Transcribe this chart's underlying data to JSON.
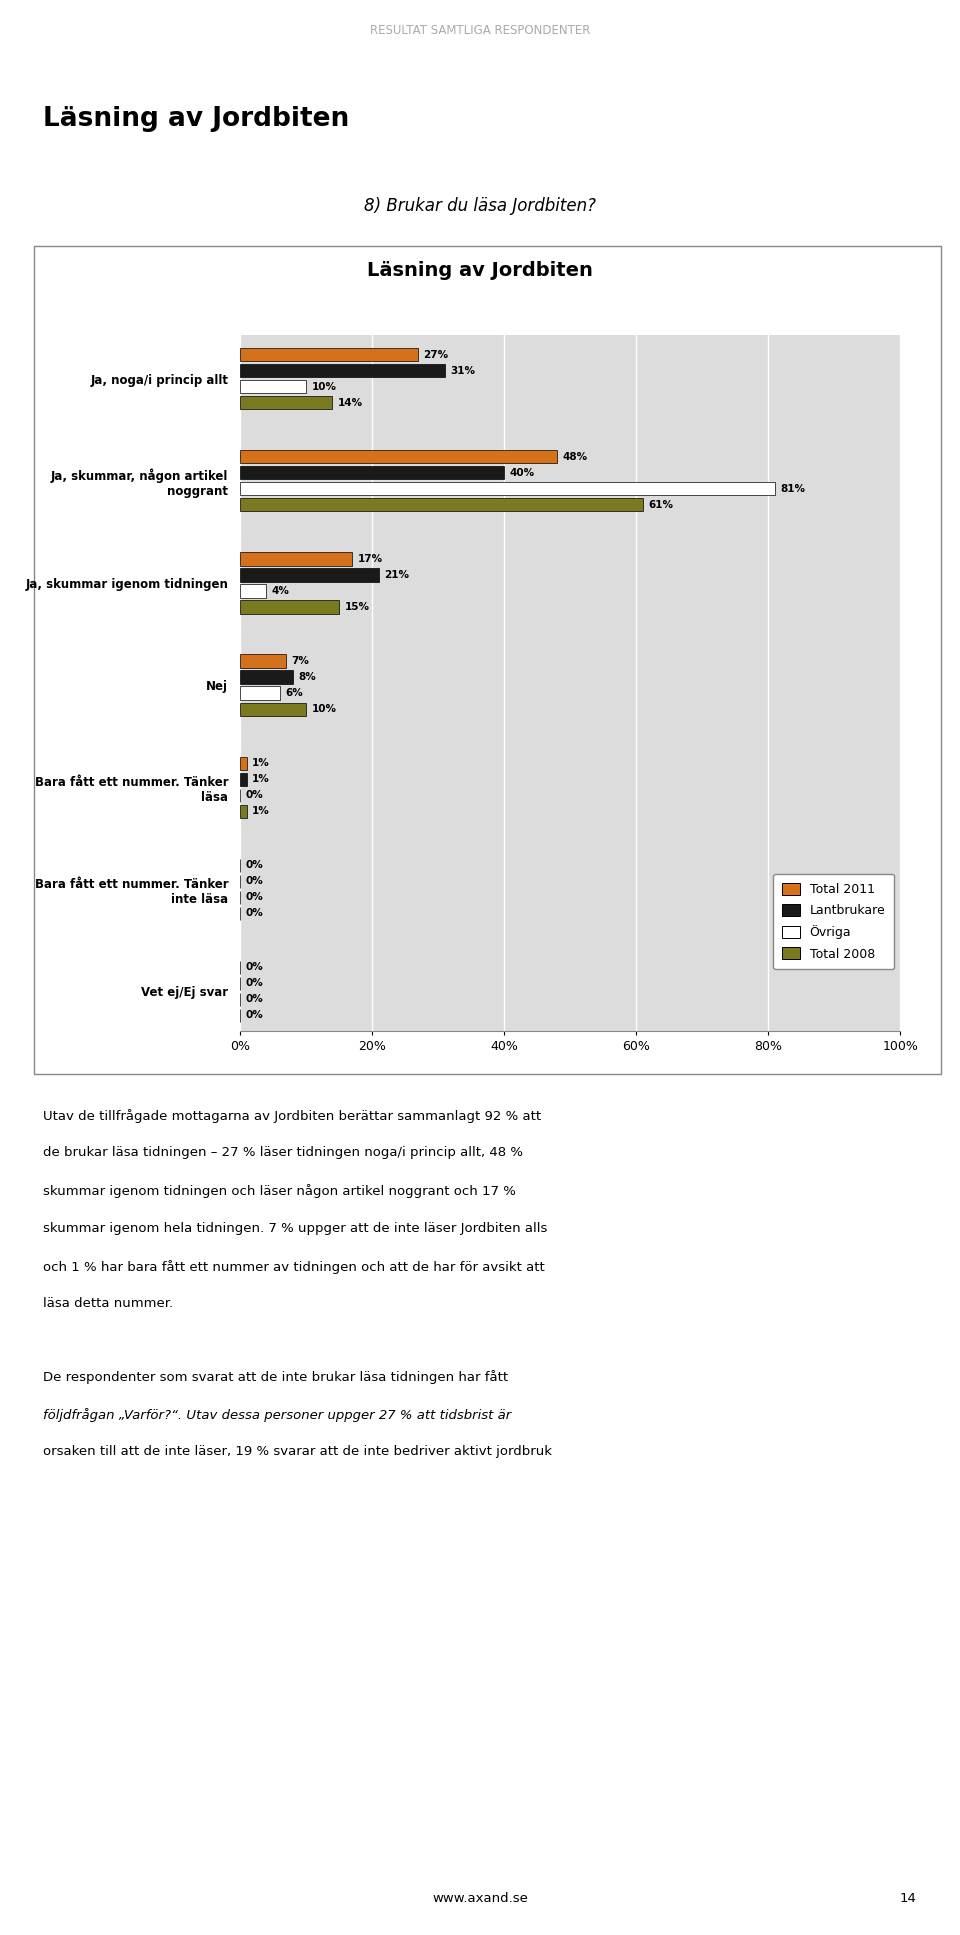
{
  "title": "Läsning av Jordbiten",
  "page_title": "Resultat samtliga respondenter",
  "section_title": "Läsning av Jordbiten",
  "question": "8) Brukar du läsa Jordbiten?",
  "categories": [
    "Ja, noga/i princip allt",
    "Ja, skummar, någon artikel\nnoggrant",
    "Ja, skummar igenom tidningen",
    "Nej",
    "Bara fått ett nummer. Tänker\nläsa",
    "Bara fått ett nummer. Tänker\ninte läsa",
    "Vet ej/Ej svar"
  ],
  "series": {
    "Total 2011": [
      27,
      48,
      17,
      7,
      1,
      0,
      0
    ],
    "Lantbrukare": [
      31,
      40,
      21,
      8,
      1,
      0,
      0
    ],
    "Övriga": [
      10,
      81,
      4,
      6,
      0,
      0,
      0
    ],
    "Total 2008": [
      14,
      61,
      15,
      10,
      1,
      0,
      0
    ]
  },
  "colors": {
    "Total 2011": "#D4711A",
    "Lantbrukare": "#1A1A1A",
    "Övriga": "#FFFFFF",
    "Total 2008": "#7A7A20"
  },
  "bar_edge_color": "#000000",
  "xlim": [
    0,
    100
  ],
  "xticks": [
    0,
    20,
    40,
    60,
    80,
    100
  ],
  "xtick_labels": [
    "0%",
    "20%",
    "40%",
    "60%",
    "80%",
    "100%"
  ],
  "chart_bg": "#DCDCDC",
  "body_text_1": [
    "Utav de tillfrågade mottagarna av Jordbiten berättar sammanlagt 92 % att",
    "de brukar läsa tidningen – 27 % läser tidningen noga/i princip allt, 48 %",
    "skummar igenom tidningen och läser någon artikel noggrant och 17 %",
    "skummar igenom hela tidningen. 7 % uppger att de inte läser Jordbiten alls",
    "och 1 % har bara fått ett nummer av tidningen och att de har för avsikt att",
    "läsa detta nummer."
  ],
  "body_text_2": [
    "De respondenter som svarat att de inte brukar läsa tidningen har fått",
    "följdfrågan „Varför?“. Utav dessa personer uppger 27 % att tidsbrist är",
    "orsaken till att de inte läser, 19 % svarar att de inte bedriver aktivt jordbruk"
  ],
  "footer": "www.axand.se",
  "page_number": "14"
}
